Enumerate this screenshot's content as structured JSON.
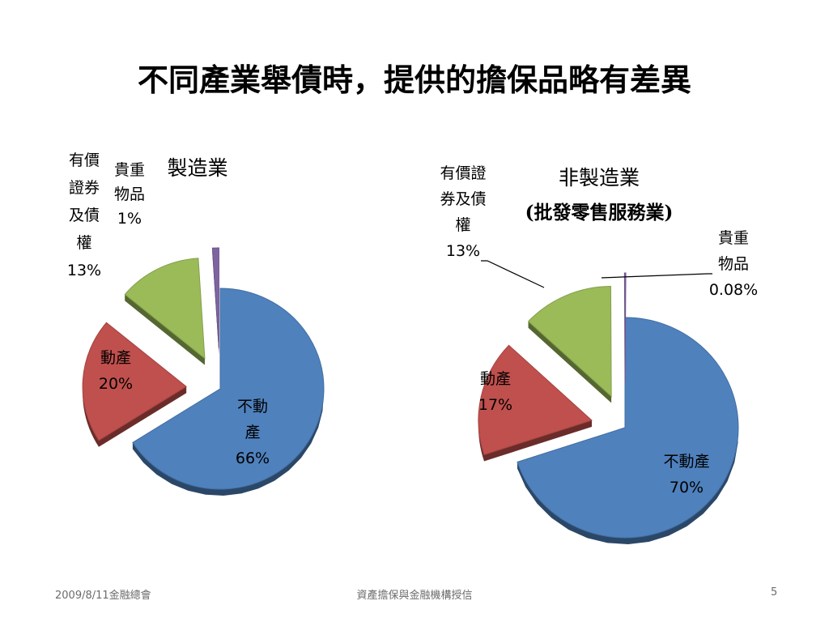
{
  "slide": {
    "title": "不同產業舉債時，提供的擔保品略有差異",
    "footer": {
      "date": "2009/8/11金融總會",
      "center": "資產擔保與金融機構授信",
      "page": "5"
    }
  },
  "colors": {
    "real_estate": "#4F81BD",
    "movable": "#C0504D",
    "securities": "#9BBB59",
    "valuables": "#8064A2"
  },
  "chart_data": [
    {
      "type": "pie",
      "title": "製造業",
      "subtitle": "",
      "slices": [
        {
          "name": "不動產",
          "name_lines": [
            "不動",
            "產"
          ],
          "value": 66,
          "label": "66%"
        },
        {
          "name": "動產",
          "name_lines": [
            "動產"
          ],
          "value": 20,
          "label": "20%"
        },
        {
          "name": "有價證券及債權",
          "name_lines": [
            "有價",
            "證券",
            "及債",
            "權"
          ],
          "value": 13,
          "label": "13%"
        },
        {
          "name": "貴重物品",
          "name_lines": [
            "貴重",
            "物品"
          ],
          "value": 1,
          "label": "1%"
        }
      ]
    },
    {
      "type": "pie",
      "title": "非製造業",
      "subtitle": "(批發零售服務業)",
      "slices": [
        {
          "name": "不動產",
          "name_lines": [
            "不動產"
          ],
          "value": 70,
          "label": "70%"
        },
        {
          "name": "動產",
          "name_lines": [
            "動產"
          ],
          "value": 17,
          "label": "17%"
        },
        {
          "name": "有價證券及債權",
          "name_lines": [
            "有價證",
            "券及債",
            "權"
          ],
          "value": 13,
          "label": "13%"
        },
        {
          "name": "貴重物品",
          "name_lines": [
            "貴重",
            "物品"
          ],
          "value": 0.08,
          "label": "0.08%"
        }
      ]
    }
  ]
}
